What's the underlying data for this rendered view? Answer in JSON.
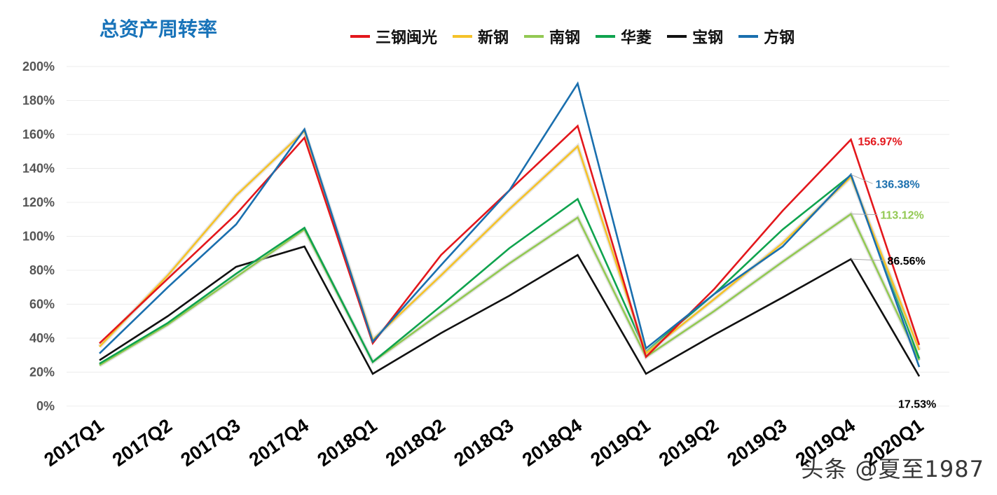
{
  "chart_data": {
    "type": "line",
    "title": "总资产周转率",
    "categories": [
      "2017Q1",
      "2017Q2",
      "2017Q3",
      "2017Q4",
      "2018Q1",
      "2018Q2",
      "2018Q3",
      "2018Q4",
      "2019Q1",
      "2019Q2",
      "2019Q3",
      "2019Q4",
      "2020Q1"
    ],
    "ylim": [
      0,
      200
    ],
    "yticks": [
      "0%",
      "20%",
      "40%",
      "60%",
      "80%",
      "100%",
      "120%",
      "140%",
      "160%",
      "180%",
      "200%"
    ],
    "grid": true,
    "legend_position": "top",
    "series": [
      {
        "name": "三钢闽光",
        "color": "#e3171c",
        "values": [
          37,
          75,
          113,
          158,
          37,
          89,
          127,
          165,
          29,
          69,
          115,
          156.97,
          36
        ]
      },
      {
        "name": "新钢",
        "color": "#f5c229",
        "values": [
          35,
          77,
          124,
          162,
          39,
          77,
          116,
          153,
          31,
          63,
          96,
          135,
          33
        ]
      },
      {
        "name": "南钢",
        "color": "#93c953",
        "values": [
          24,
          48,
          76,
          104,
          26,
          55,
          84,
          111,
          29,
          56,
          85,
          113.12,
          27
        ]
      },
      {
        "name": "华菱",
        "color": "#0fa34e",
        "values": [
          25,
          49,
          78,
          105,
          26,
          59,
          93,
          122,
          32,
          66,
          104,
          136,
          28
        ]
      },
      {
        "name": "宝钢",
        "color": "#111111",
        "values": [
          27,
          53,
          82,
          94,
          19,
          43,
          65,
          89,
          19,
          42,
          64,
          86.56,
          17.53
        ]
      },
      {
        "name": "方钢",
        "color": "#1a6fae",
        "values": [
          31,
          70,
          107,
          163,
          38,
          83,
          127,
          190,
          34,
          66,
          94,
          136.38,
          23
        ]
      }
    ],
    "annotations": [
      {
        "series": "三钢闽光",
        "text": "156.97%",
        "color": "#e3171c"
      },
      {
        "series": "方钢",
        "text": "136.38%",
        "color": "#1a6fae"
      },
      {
        "series": "南钢",
        "text": "113.12%",
        "color": "#93c953"
      },
      {
        "series": "宝钢",
        "text": "86.56%",
        "color": "#000000"
      },
      {
        "series": "宝钢",
        "text": "17.53%",
        "color": "#000000"
      }
    ]
  },
  "watermark": "头条 @夏至1987"
}
